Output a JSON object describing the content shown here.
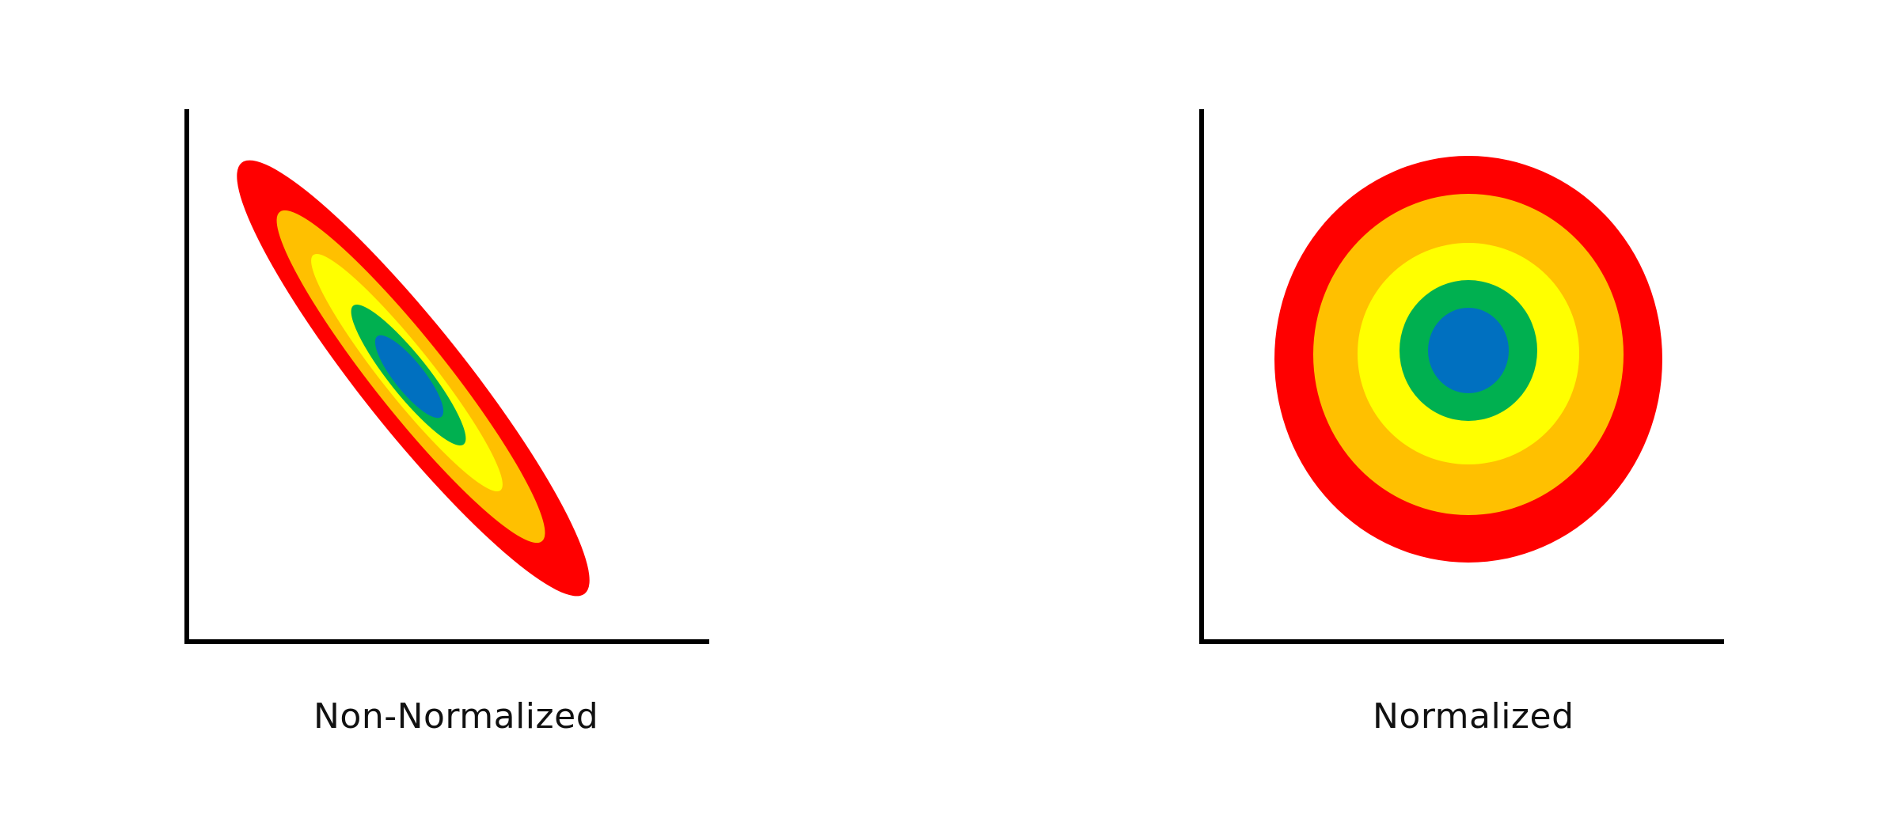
{
  "colors": {
    "axis": "#000000",
    "levels": [
      "#ff0000",
      "#ffc000",
      "#ffff00",
      "#00b050",
      "#0070c0"
    ]
  },
  "panels": [
    {
      "caption": "Non-Normalized",
      "shape": "elongated tilted ellipses"
    },
    {
      "caption": "Normalized",
      "shape": "concentric circles"
    }
  ]
}
